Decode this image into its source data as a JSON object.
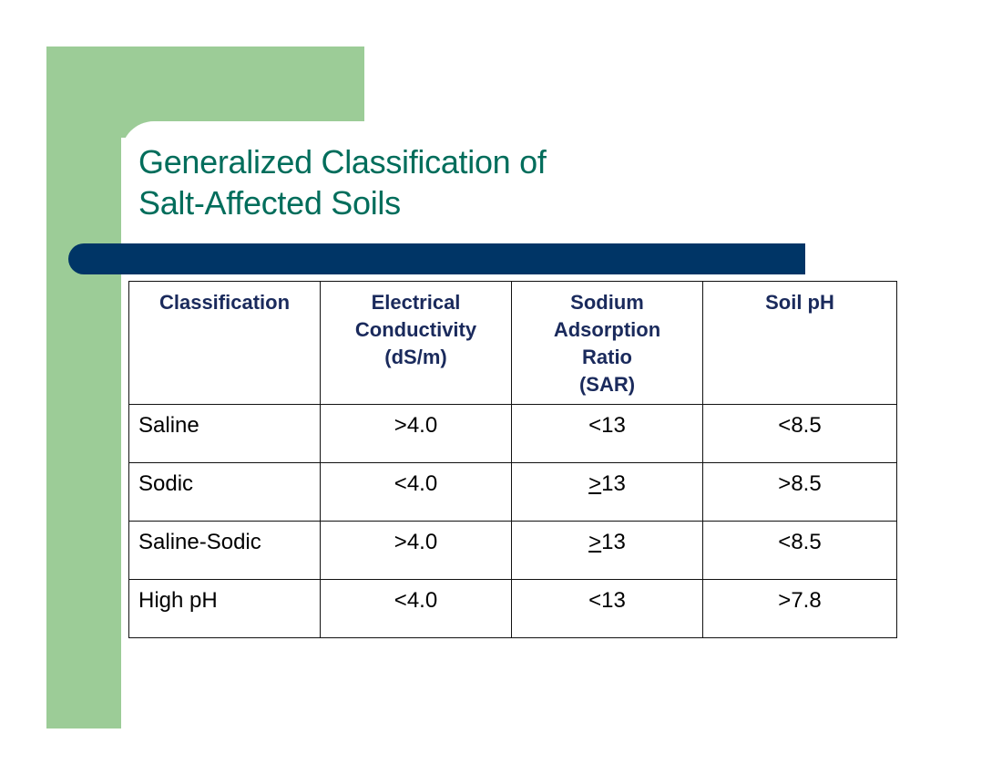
{
  "slide": {
    "title_line1": "Generalized Classification of",
    "title_line2": "Salt-Affected Soils",
    "colors": {
      "green_accent": "#9ccc97",
      "blue_bar": "#003566",
      "title_text": "#006d5b",
      "header_text": "#1a2a5c"
    }
  },
  "table": {
    "headers": [
      {
        "line1": "Classification",
        "line2": "",
        "line3": "",
        "line4": ""
      },
      {
        "line1": "Electrical",
        "line2": "Conductivity",
        "line3": "(dS/m)",
        "line4": ""
      },
      {
        "line1": "Sodium",
        "line2": "Adsorption",
        "line3": "Ratio",
        "line4": "(SAR)"
      },
      {
        "line1": "Soil pH",
        "line2": "",
        "line3": "",
        "line4": ""
      }
    ],
    "rows": [
      {
        "classification": "Saline",
        "ec": ">4.0",
        "sar_sym": "",
        "sar": "<13",
        "ph": "<8.5"
      },
      {
        "classification": "Sodic",
        "ec": "<4.0",
        "sar_sym": ">",
        "sar": "13",
        "ph": ">8.5"
      },
      {
        "classification": "Saline-Sodic",
        "ec": ">4.0",
        "sar_sym": ">",
        "sar": "13",
        "ph": "<8.5"
      },
      {
        "classification": "High pH",
        "ec": "<4.0",
        "sar_sym": "",
        "sar": "<13",
        "ph": ">7.8"
      }
    ]
  }
}
